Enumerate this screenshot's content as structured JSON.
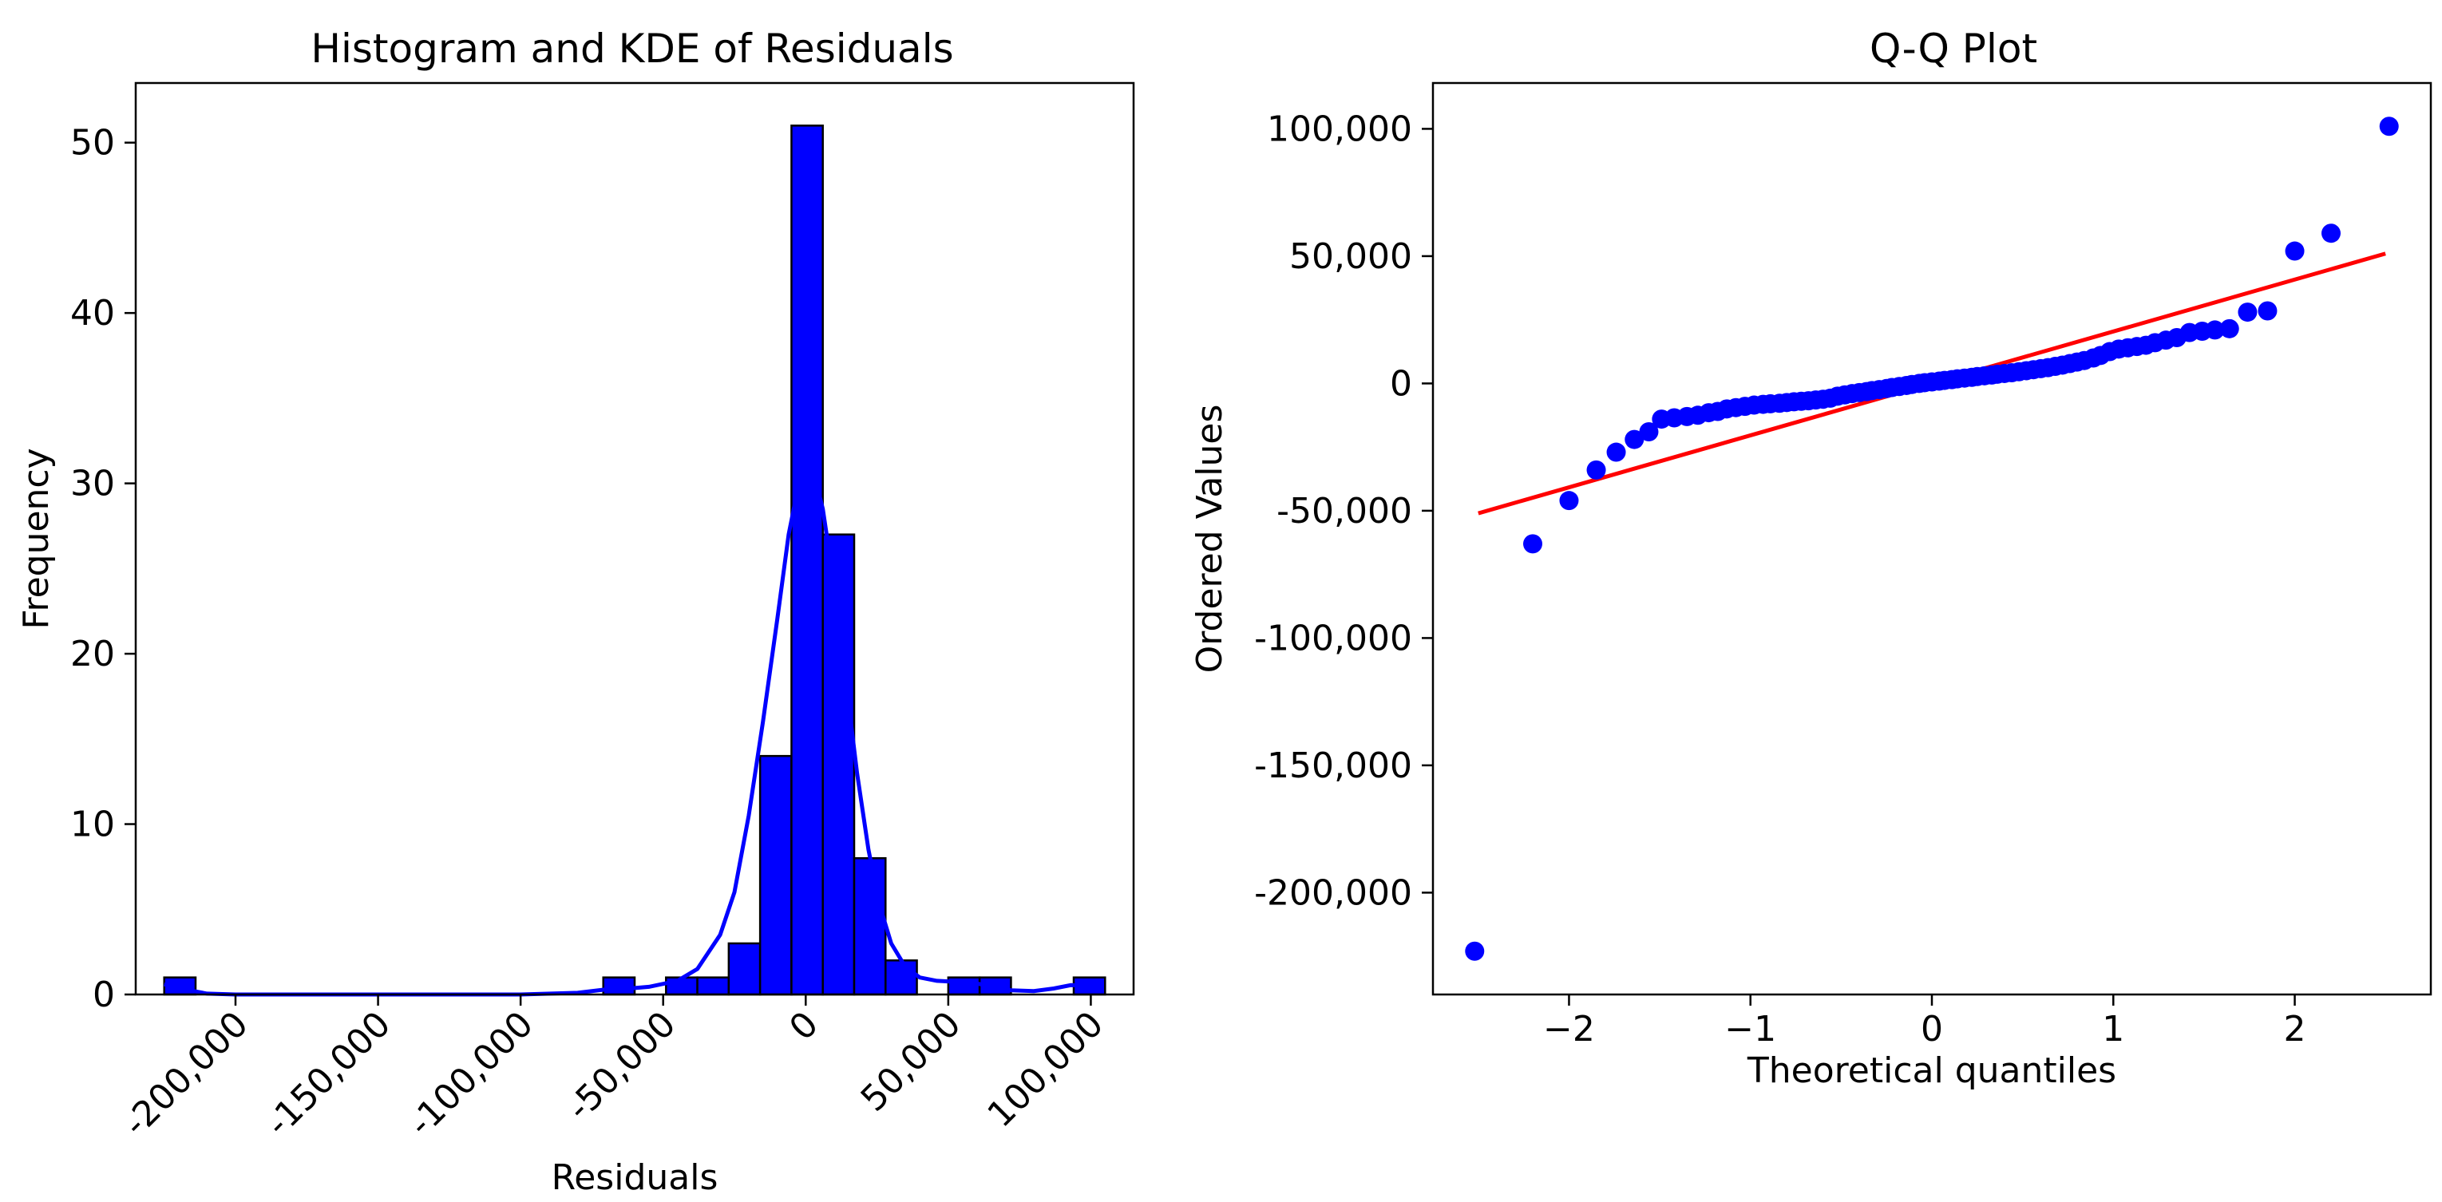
{
  "chart_data": [
    {
      "type": "bar",
      "subtype": "histogram-with-kde",
      "title": "Histogram and KDE of Residuals",
      "xlabel": "Residuals",
      "ylabel": "Frequency",
      "xlim": [
        -235000,
        115000
      ],
      "ylim": [
        0,
        53.5
      ],
      "x_ticks": [
        -200000,
        -150000,
        -100000,
        -50000,
        0,
        50000,
        100000
      ],
      "x_tick_labels": [
        "-200,000",
        "-150,000",
        "-100,000",
        "-50,000",
        "0",
        "50,000",
        "100,000"
      ],
      "y_ticks": [
        0,
        10,
        20,
        30,
        40,
        50
      ],
      "y_tick_labels": [
        "0",
        "10",
        "20",
        "30",
        "40",
        "50"
      ],
      "bar_color": "#0000ff",
      "bar_edge_color": "#000000",
      "bins": [
        {
          "x0": -225000,
          "x1": -214000,
          "count": 1
        },
        {
          "x0": -214000,
          "x1": -203000,
          "count": 0
        },
        {
          "x0": -203000,
          "x1": -192000,
          "count": 0
        },
        {
          "x0": -192000,
          "x1": -181000,
          "count": 0
        },
        {
          "x0": -181000,
          "x1": -170000,
          "count": 0
        },
        {
          "x0": -170000,
          "x1": -159000,
          "count": 0
        },
        {
          "x0": -159000,
          "x1": -148000,
          "count": 0
        },
        {
          "x0": -148000,
          "x1": -137000,
          "count": 0
        },
        {
          "x0": -137000,
          "x1": -126000,
          "count": 0
        },
        {
          "x0": -126000,
          "x1": -115000,
          "count": 0
        },
        {
          "x0": -115000,
          "x1": -104000,
          "count": 0
        },
        {
          "x0": -104000,
          "x1": -93000,
          "count": 0
        },
        {
          "x0": -93000,
          "x1": -82000,
          "count": 0
        },
        {
          "x0": -82000,
          "x1": -71000,
          "count": 0
        },
        {
          "x0": -71000,
          "x1": -60000,
          "count": 1
        },
        {
          "x0": -60000,
          "x1": -49000,
          "count": 0
        },
        {
          "x0": -49000,
          "x1": -38000,
          "count": 1
        },
        {
          "x0": -38000,
          "x1": -27000,
          "count": 1
        },
        {
          "x0": -27000,
          "x1": -16000,
          "count": 3
        },
        {
          "x0": -16000,
          "x1": -5000,
          "count": 14
        },
        {
          "x0": -5000,
          "x1": 6000,
          "count": 51
        },
        {
          "x0": 6000,
          "x1": 17000,
          "count": 27
        },
        {
          "x0": 17000,
          "x1": 28000,
          "count": 8
        },
        {
          "x0": 28000,
          "x1": 39000,
          "count": 2
        },
        {
          "x0": 39000,
          "x1": 50000,
          "count": 0
        },
        {
          "x0": 50000,
          "x1": 61000,
          "count": 1
        },
        {
          "x0": 61000,
          "x1": 72000,
          "count": 1
        },
        {
          "x0": 72000,
          "x1": 83000,
          "count": 0
        },
        {
          "x0": 83000,
          "x1": 94000,
          "count": 0
        },
        {
          "x0": 94000,
          "x1": 105000,
          "count": 1
        }
      ],
      "kde": {
        "color": "#0000ff",
        "points": [
          [
            -225000,
            0.6
          ],
          [
            -218000,
            0.3
          ],
          [
            -210000,
            0.05
          ],
          [
            -200000,
            0
          ],
          [
            -150000,
            0
          ],
          [
            -100000,
            0
          ],
          [
            -80000,
            0.1
          ],
          [
            -70000,
            0.3
          ],
          [
            -62000,
            0.35
          ],
          [
            -55000,
            0.45
          ],
          [
            -45000,
            0.8
          ],
          [
            -38000,
            1.5
          ],
          [
            -30000,
            3.5
          ],
          [
            -25000,
            6
          ],
          [
            -20000,
            10.5
          ],
          [
            -15000,
            16
          ],
          [
            -10000,
            22
          ],
          [
            -6000,
            27
          ],
          [
            -3000,
            29.5
          ],
          [
            0,
            31
          ],
          [
            3000,
            30.5
          ],
          [
            6000,
            28.5
          ],
          [
            10000,
            24
          ],
          [
            14000,
            18.5
          ],
          [
            18000,
            13
          ],
          [
            22000,
            8.5
          ],
          [
            26000,
            5.2
          ],
          [
            30000,
            3
          ],
          [
            35000,
            1.6
          ],
          [
            40000,
            1
          ],
          [
            46000,
            0.8
          ],
          [
            52000,
            0.75
          ],
          [
            58000,
            0.7
          ],
          [
            65000,
            0.5
          ],
          [
            72000,
            0.25
          ],
          [
            80000,
            0.2
          ],
          [
            87000,
            0.35
          ],
          [
            93000,
            0.55
          ],
          [
            100000,
            0.5
          ]
        ]
      }
    },
    {
      "type": "scatter",
      "subtype": "qq-plot",
      "title": "Q-Q Plot",
      "xlabel": "Theoretical quantiles",
      "ylabel": "Ordered Values",
      "xlim": [
        -2.75,
        2.75
      ],
      "ylim": [
        -240000,
        118000
      ],
      "x_ticks": [
        -2,
        -1,
        0,
        1,
        2
      ],
      "x_tick_labels": [
        "−2",
        "−1",
        "0",
        "1",
        "2"
      ],
      "y_ticks": [
        100000,
        50000,
        0,
        -50000,
        -100000,
        -150000,
        -200000
      ],
      "y_tick_labels": [
        "100,000",
        "50,000",
        "0",
        "-50,000",
        "-100,000",
        "-150,000",
        "-200,000"
      ],
      "point_color": "#0000ff",
      "line_color": "#ff0000",
      "fit_line": {
        "x": [
          -2.5,
          2.5
        ],
        "y": [
          -51000,
          51000
        ]
      },
      "points": [
        [
          -2.52,
          -223000
        ],
        [
          -2.2,
          -63000
        ],
        [
          -2.0,
          -46000
        ],
        [
          -1.85,
          -34000
        ],
        [
          -1.74,
          -27000
        ],
        [
          -1.64,
          -22000
        ],
        [
          -1.56,
          -19000
        ],
        [
          -1.49,
          -14000
        ],
        [
          -1.42,
          -13500
        ],
        [
          -1.35,
          -13000
        ],
        [
          -1.29,
          -12500
        ],
        [
          -1.23,
          -11500
        ],
        [
          -1.18,
          -11000
        ],
        [
          -1.13,
          -10000
        ],
        [
          -1.08,
          -9500
        ],
        [
          -1.03,
          -9000
        ],
        [
          -0.98,
          -8500
        ],
        [
          -0.93,
          -8200
        ],
        [
          -0.89,
          -8000
        ],
        [
          -0.84,
          -7800
        ],
        [
          -0.8,
          -7500
        ],
        [
          -0.76,
          -7200
        ],
        [
          -0.72,
          -7000
        ],
        [
          -0.68,
          -6800
        ],
        [
          -0.64,
          -6500
        ],
        [
          -0.6,
          -6200
        ],
        [
          -0.56,
          -5800
        ],
        [
          -0.52,
          -5000
        ],
        [
          -0.48,
          -4500
        ],
        [
          -0.44,
          -4000
        ],
        [
          -0.4,
          -3600
        ],
        [
          -0.36,
          -3200
        ],
        [
          -0.33,
          -2800
        ],
        [
          -0.29,
          -2400
        ],
        [
          -0.25,
          -2000
        ],
        [
          -0.22,
          -1600
        ],
        [
          -0.18,
          -1200
        ],
        [
          -0.14,
          -800
        ],
        [
          -0.11,
          -400
        ],
        [
          -0.07,
          0
        ],
        [
          -0.04,
          300
        ],
        [
          0.0,
          600
        ],
        [
          0.04,
          900
        ],
        [
          0.07,
          1200
        ],
        [
          0.11,
          1500
        ],
        [
          0.14,
          1800
        ],
        [
          0.18,
          2100
        ],
        [
          0.22,
          2400
        ],
        [
          0.25,
          2700
        ],
        [
          0.29,
          3000
        ],
        [
          0.33,
          3300
        ],
        [
          0.36,
          3600
        ],
        [
          0.4,
          3900
        ],
        [
          0.44,
          4200
        ],
        [
          0.48,
          4600
        ],
        [
          0.52,
          5000
        ],
        [
          0.56,
          5400
        ],
        [
          0.6,
          5800
        ],
        [
          0.64,
          6200
        ],
        [
          0.68,
          6700
        ],
        [
          0.72,
          7200
        ],
        [
          0.76,
          7800
        ],
        [
          0.8,
          8400
        ],
        [
          0.84,
          9000
        ],
        [
          0.89,
          10000
        ],
        [
          0.93,
          11000
        ],
        [
          0.98,
          12500
        ],
        [
          1.03,
          13500
        ],
        [
          1.08,
          14000
        ],
        [
          1.13,
          14500
        ],
        [
          1.18,
          15000
        ],
        [
          1.23,
          16000
        ],
        [
          1.29,
          17000
        ],
        [
          1.35,
          18000
        ],
        [
          1.42,
          20000
        ],
        [
          1.49,
          20500
        ],
        [
          1.56,
          21000
        ],
        [
          1.64,
          21500
        ],
        [
          1.74,
          28000
        ],
        [
          1.85,
          28500
        ],
        [
          2.0,
          52000
        ],
        [
          2.2,
          59000
        ],
        [
          2.52,
          101000
        ]
      ]
    }
  ]
}
